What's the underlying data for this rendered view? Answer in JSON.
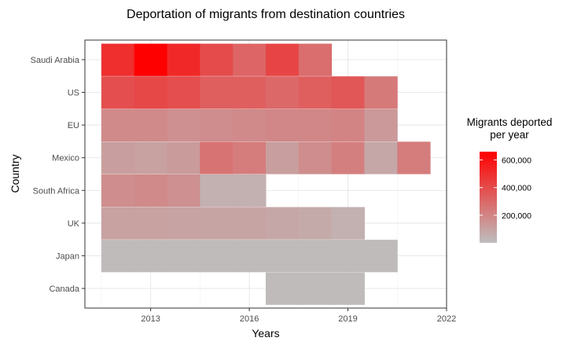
{
  "chart_data": {
    "type": "heatmap",
    "title": "Deportation of migrants from destination countries",
    "xlabel": "Years",
    "ylabel": "Country",
    "xlim": [
      2011,
      2022
    ],
    "x_ticks": [
      2013,
      2016,
      2019,
      2022
    ],
    "legend": {
      "title_lines": [
        "Migrants deported",
        "per year"
      ],
      "ticks": [
        200000,
        400000,
        600000
      ],
      "tick_labels": [
        "200,000",
        "400,000",
        "600,000"
      ],
      "range": [
        0,
        660000
      ],
      "low_color": "#bebebe",
      "high_color": "#ff0000",
      "placement": "right"
    },
    "countries": [
      "Saudi Arabia",
      "US",
      "EU",
      "Mexico",
      "South Africa",
      "UK",
      "Japan",
      "Canada"
    ],
    "series": [
      {
        "name": "Saudi Arabia",
        "points": [
          [
            2012,
            500000
          ],
          [
            2013,
            660000
          ],
          [
            2014,
            520000
          ],
          [
            2015,
            400000
          ],
          [
            2016,
            310000
          ],
          [
            2017,
            420000
          ],
          [
            2018,
            280000
          ]
        ]
      },
      {
        "name": "US",
        "points": [
          [
            2012,
            390000
          ],
          [
            2013,
            410000
          ],
          [
            2014,
            390000
          ],
          [
            2015,
            330000
          ],
          [
            2016,
            330000
          ],
          [
            2017,
            300000
          ],
          [
            2018,
            330000
          ],
          [
            2019,
            360000
          ],
          [
            2020,
            240000
          ]
        ]
      },
      {
        "name": "EU",
        "points": [
          [
            2012,
            180000
          ],
          [
            2013,
            180000
          ],
          [
            2014,
            160000
          ],
          [
            2015,
            170000
          ],
          [
            2016,
            180000
          ],
          [
            2017,
            190000
          ],
          [
            2018,
            190000
          ],
          [
            2019,
            200000
          ],
          [
            2020,
            130000
          ]
        ]
      },
      {
        "name": "Mexico",
        "points": [
          [
            2012,
            110000
          ],
          [
            2013,
            100000
          ],
          [
            2014,
            120000
          ],
          [
            2015,
            260000
          ],
          [
            2016,
            230000
          ],
          [
            2017,
            110000
          ],
          [
            2018,
            170000
          ],
          [
            2019,
            220000
          ],
          [
            2020,
            80000
          ],
          [
            2021,
            230000
          ]
        ]
      },
      {
        "name": "South Africa",
        "points": [
          [
            2012,
            170000
          ],
          [
            2013,
            180000
          ],
          [
            2014,
            160000
          ],
          [
            2015,
            50000
          ],
          [
            2016,
            50000
          ]
        ]
      },
      {
        "name": "UK",
        "points": [
          [
            2012,
            100000
          ],
          [
            2013,
            100000
          ],
          [
            2014,
            95000
          ],
          [
            2015,
            90000
          ],
          [
            2016,
            90000
          ],
          [
            2017,
            80000
          ],
          [
            2018,
            70000
          ],
          [
            2019,
            50000
          ]
        ]
      },
      {
        "name": "Japan",
        "points": [
          [
            2012,
            10000
          ],
          [
            2013,
            10000
          ],
          [
            2014,
            10000
          ],
          [
            2015,
            10000
          ],
          [
            2016,
            10000
          ],
          [
            2017,
            10000
          ],
          [
            2018,
            10000
          ],
          [
            2019,
            10000
          ],
          [
            2020,
            10000
          ]
        ]
      },
      {
        "name": "Canada",
        "points": [
          [
            2017,
            10000
          ],
          [
            2018,
            10000
          ],
          [
            2019,
            10000
          ]
        ]
      }
    ]
  }
}
